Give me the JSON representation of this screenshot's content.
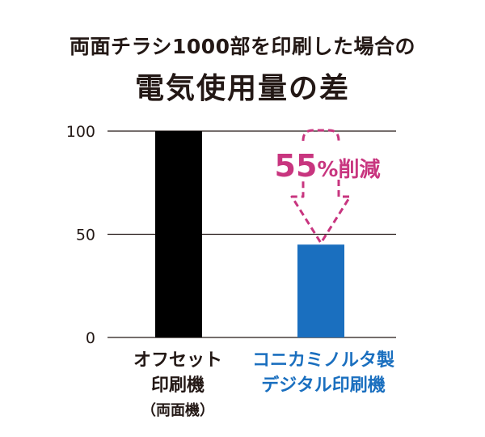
{
  "title": {
    "line1": "両面チラシ1000部を印刷した場合の",
    "line2": "電気使用量の差"
  },
  "annotation": {
    "big": "55",
    "small": "%削減"
  },
  "colors": {
    "bar1": "#000000",
    "bar2": "#1a6fbf",
    "accent": "#c8357f",
    "text": "#231815"
  },
  "chart_data": {
    "type": "bar",
    "categories": [
      "オフセット印刷機（両面機）",
      "コニカミノルタ製デジタル印刷機"
    ],
    "category_lines": [
      [
        "オフセット",
        "印刷機",
        "（両面機）"
      ],
      [
        "コニカミノルタ製",
        "デジタル印刷機"
      ]
    ],
    "values": [
      100,
      45
    ],
    "ylim": [
      0,
      100
    ],
    "yticks": [
      0,
      50,
      100
    ],
    "grid": true,
    "annotation": "55%削減"
  }
}
